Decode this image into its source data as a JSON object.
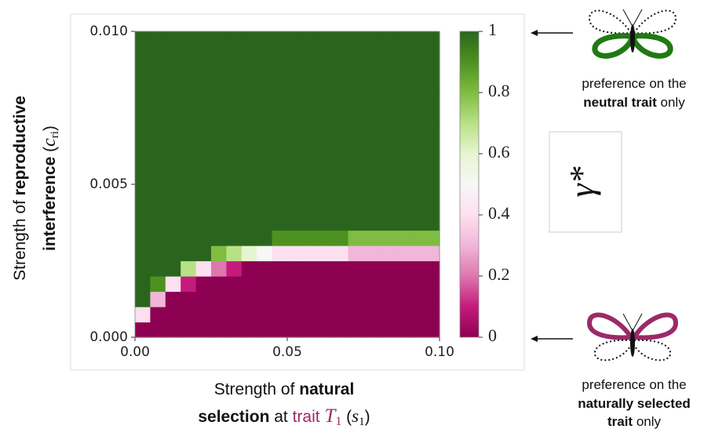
{
  "chart_data": {
    "type": "heatmap",
    "xbins": [
      0,
      0.005,
      0.01,
      0.015,
      0.02,
      0.025,
      0.03,
      0.035,
      0.04,
      0.045,
      0.05,
      0.055,
      0.06,
      0.065,
      0.07,
      0.075,
      0.08,
      0.085,
      0.09,
      0.095,
      0.1
    ],
    "ybins": [
      0,
      0.0005,
      0.001,
      0.0015,
      0.002,
      0.0025,
      0.003,
      0.0035,
      0.004,
      0.0045,
      0.005,
      0.0055,
      0.006,
      0.0065,
      0.007,
      0.0075,
      0.008,
      0.0085,
      0.009,
      0.0095,
      0.01
    ],
    "z": [
      [
        0,
        0,
        0,
        0,
        0,
        0,
        0,
        0,
        0,
        0,
        0,
        0,
        0,
        0,
        0,
        0,
        0,
        0,
        0,
        0
      ],
      [
        0.4,
        0,
        0,
        0,
        0,
        0,
        0,
        0,
        0,
        0,
        0,
        0,
        0,
        0,
        0,
        0,
        0,
        0,
        0,
        0
      ],
      [
        1,
        0.3,
        0,
        0,
        0,
        0,
        0,
        0,
        0,
        0,
        0,
        0,
        0,
        0,
        0,
        0,
        0,
        0,
        0,
        0
      ],
      [
        1,
        0.9,
        0.4,
        0.1,
        0,
        0,
        0,
        0,
        0,
        0,
        0,
        0,
        0,
        0,
        0,
        0,
        0,
        0,
        0,
        0
      ],
      [
        1,
        1,
        1,
        0.7,
        0.4,
        0.2,
        0.1,
        0,
        0,
        0,
        0,
        0,
        0,
        0,
        0,
        0,
        0,
        0,
        0,
        0
      ],
      [
        1,
        1,
        1,
        1,
        1,
        0.8,
        0.7,
        0.6,
        0.5,
        0.4,
        0.4,
        0.4,
        0.4,
        0.4,
        0.3,
        0.3,
        0.3,
        0.3,
        0.3,
        0.3
      ],
      [
        1,
        1,
        1,
        1,
        1,
        1,
        1,
        1,
        1,
        0.9,
        0.9,
        0.9,
        0.9,
        0.9,
        0.8,
        0.8,
        0.8,
        0.8,
        0.8,
        0.8
      ],
      [
        1,
        1,
        1,
        1,
        1,
        1,
        1,
        1,
        1,
        1,
        1,
        1,
        1,
        1,
        1,
        1,
        1,
        1,
        1,
        1
      ],
      [
        1,
        1,
        1,
        1,
        1,
        1,
        1,
        1,
        1,
        1,
        1,
        1,
        1,
        1,
        1,
        1,
        1,
        1,
        1,
        1
      ],
      [
        1,
        1,
        1,
        1,
        1,
        1,
        1,
        1,
        1,
        1,
        1,
        1,
        1,
        1,
        1,
        1,
        1,
        1,
        1,
        1
      ],
      [
        1,
        1,
        1,
        1,
        1,
        1,
        1,
        1,
        1,
        1,
        1,
        1,
        1,
        1,
        1,
        1,
        1,
        1,
        1,
        1
      ],
      [
        1,
        1,
        1,
        1,
        1,
        1,
        1,
        1,
        1,
        1,
        1,
        1,
        1,
        1,
        1,
        1,
        1,
        1,
        1,
        1
      ],
      [
        1,
        1,
        1,
        1,
        1,
        1,
        1,
        1,
        1,
        1,
        1,
        1,
        1,
        1,
        1,
        1,
        1,
        1,
        1,
        1
      ],
      [
        1,
        1,
        1,
        1,
        1,
        1,
        1,
        1,
        1,
        1,
        1,
        1,
        1,
        1,
        1,
        1,
        1,
        1,
        1,
        1
      ],
      [
        1,
        1,
        1,
        1,
        1,
        1,
        1,
        1,
        1,
        1,
        1,
        1,
        1,
        1,
        1,
        1,
        1,
        1,
        1,
        1
      ],
      [
        1,
        1,
        1,
        1,
        1,
        1,
        1,
        1,
        1,
        1,
        1,
        1,
        1,
        1,
        1,
        1,
        1,
        1,
        1,
        1
      ],
      [
        1,
        1,
        1,
        1,
        1,
        1,
        1,
        1,
        1,
        1,
        1,
        1,
        1,
        1,
        1,
        1,
        1,
        1,
        1,
        1
      ],
      [
        1,
        1,
        1,
        1,
        1,
        1,
        1,
        1,
        1,
        1,
        1,
        1,
        1,
        1,
        1,
        1,
        1,
        1,
        1,
        1
      ],
      [
        1,
        1,
        1,
        1,
        1,
        1,
        1,
        1,
        1,
        1,
        1,
        1,
        1,
        1,
        1,
        1,
        1,
        1,
        1,
        1
      ],
      [
        1,
        1,
        1,
        1,
        1,
        1,
        1,
        1,
        1,
        1,
        1,
        1,
        1,
        1,
        1,
        1,
        1,
        1,
        1,
        1
      ]
    ],
    "xlim": [
      0,
      0.1
    ],
    "xticks": [
      {
        "value": 0,
        "label": "0.00"
      },
      {
        "value": 0.05,
        "label": "0.05"
      },
      {
        "value": 0.1,
        "label": "0.10"
      }
    ],
    "ylim": [
      0,
      0.01
    ],
    "yticks": [
      {
        "value": 0,
        "label": "0.000"
      },
      {
        "value": 0.005,
        "label": "0.005"
      },
      {
        "value": 0.01,
        "label": "0.010"
      }
    ],
    "xlabel": [
      [
        "Strength of ",
        "natural"
      ],
      [
        "selection",
        " at ",
        "trait ",
        "T",
        "1",
        " (",
        "s",
        "1",
        ")"
      ]
    ],
    "ylabel": [
      [
        "Strength of ",
        "reproductive"
      ],
      [
        "interference",
        " (",
        "c",
        "ri",
        ")"
      ]
    ],
    "colorbar": {
      "label": "γ*",
      "ylim": [
        0,
        1
      ],
      "yticks": [
        0,
        0.2,
        0.4,
        0.6,
        0.8,
        1
      ],
      "colormap": [
        "#8e0152",
        "#c51b7d",
        "#de77ae",
        "#f1b6da",
        "#fde0ef",
        "#f7f7f7",
        "#e6f5d0",
        "#b8e186",
        "#7fbc41",
        "#4d9221",
        "#2b651d"
      ]
    },
    "annotations": {
      "top": [
        "preference on the",
        [
          "neutral trait",
          " only"
        ]
      ],
      "bottom": [
        "preference on the",
        "naturally selected",
        [
          "trait",
          " only"
        ]
      ]
    }
  }
}
